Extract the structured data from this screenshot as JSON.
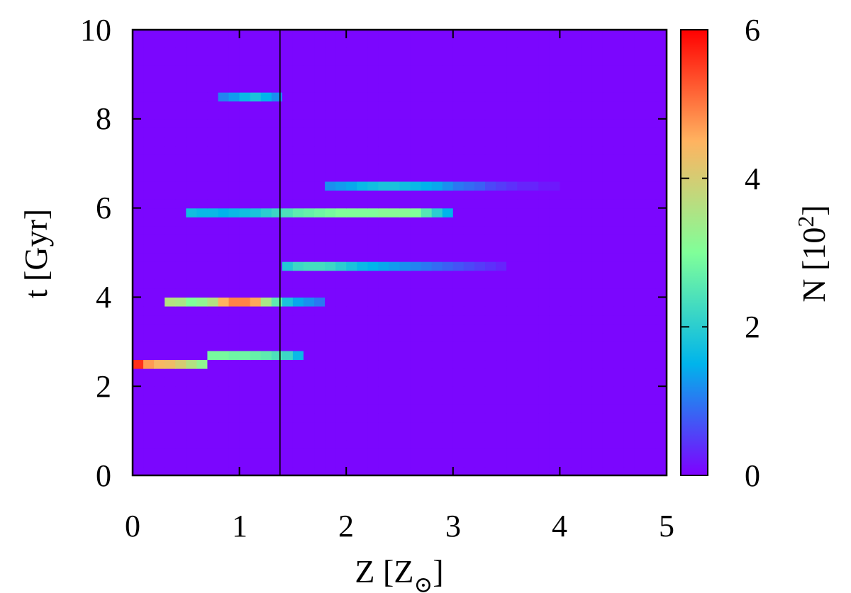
{
  "chart_data": {
    "type": "heatmap",
    "title": "",
    "xlabel": "Z [Z",
    "xlabel_sub": "⊙",
    "xlabel_close": "]",
    "ylabel": "t [Gyr]",
    "colorbar_label_main": "N [10",
    "colorbar_label_sup": "2",
    "colorbar_label_close": "]",
    "xlim": [
      0,
      5
    ],
    "ylim": [
      0,
      10
    ],
    "x_ticks": [
      "0",
      "1",
      "2",
      "3",
      "4",
      "5"
    ],
    "y_ticks": [
      "0",
      "2",
      "4",
      "6",
      "8",
      "10"
    ],
    "colorbar_range": [
      0,
      6
    ],
    "colorbar_ticks": [
      "0",
      "2",
      "4",
      "6"
    ],
    "colormap": "rainbow",
    "colormap_stops": [
      "#7f00ff",
      "#00b4eb",
      "#80ff99",
      "#ffb360",
      "#ff0000"
    ],
    "background_value": 0.05,
    "bins": {
      "x_step": 0.1,
      "y_step": 0.2
    },
    "vertical_line_x": 1.38,
    "grid": false,
    "features": [
      {
        "description": "peak ridge",
        "x_range": [
          0.0,
          0.7
        ],
        "y": 2.4,
        "values": [
          5.6,
          4.7,
          4.4,
          4.3,
          4.0,
          3.6,
          3.2
        ]
      },
      {
        "description": "ridge",
        "x_range": [
          0.7,
          1.6
        ],
        "y": 2.6,
        "values": [
          2.9,
          2.9,
          2.8,
          2.8,
          2.7,
          2.6,
          2.4,
          2.2,
          1.6
        ]
      },
      {
        "description": "ridge",
        "x_range": [
          0.3,
          1.8
        ],
        "y": 3.8,
        "values": [
          3.6,
          3.5,
          3.0,
          3.2,
          3.6,
          4.5,
          4.9,
          4.9,
          4.6,
          3.5,
          2.6,
          1.8,
          1.4,
          1.2,
          1.0
        ]
      },
      {
        "description": "ridge",
        "x_range": [
          0.5,
          3.0
        ],
        "y": 5.8,
        "values": [
          1.7,
          1.6,
          1.6,
          1.5,
          1.6,
          1.7,
          1.8,
          2.0,
          2.2,
          2.4,
          2.6,
          2.7,
          2.8,
          2.9,
          3.0,
          3.0,
          3.0,
          3.0,
          3.1,
          3.1,
          3.1,
          3.0,
          2.5,
          2.0,
          1.5
        ]
      },
      {
        "description": "ridge",
        "x_range": [
          1.4,
          3.5
        ],
        "y": 4.6,
        "values": [
          1.9,
          2.2,
          2.3,
          2.3,
          2.2,
          2.0,
          1.8,
          1.6,
          1.5,
          1.4,
          1.3,
          1.2,
          1.1,
          1.0,
          0.9,
          0.8,
          0.7,
          0.6,
          0.5,
          0.4,
          0.3
        ]
      },
      {
        "description": "ridge",
        "x_range": [
          1.8,
          4.0
        ],
        "y": 6.4,
        "values": [
          1.2,
          1.3,
          1.4,
          1.6,
          1.7,
          1.8,
          1.8,
          1.7,
          1.6,
          1.5,
          1.4,
          1.2,
          1.0,
          0.9,
          0.8,
          0.6,
          0.5,
          0.4,
          0.3,
          0.3,
          0.2,
          0.2
        ]
      },
      {
        "description": "ridge",
        "x_range": [
          0.8,
          1.4
        ],
        "y": 8.4,
        "values": [
          1.1,
          1.3,
          1.6,
          1.8,
          1.5,
          1.2
        ]
      }
    ]
  }
}
